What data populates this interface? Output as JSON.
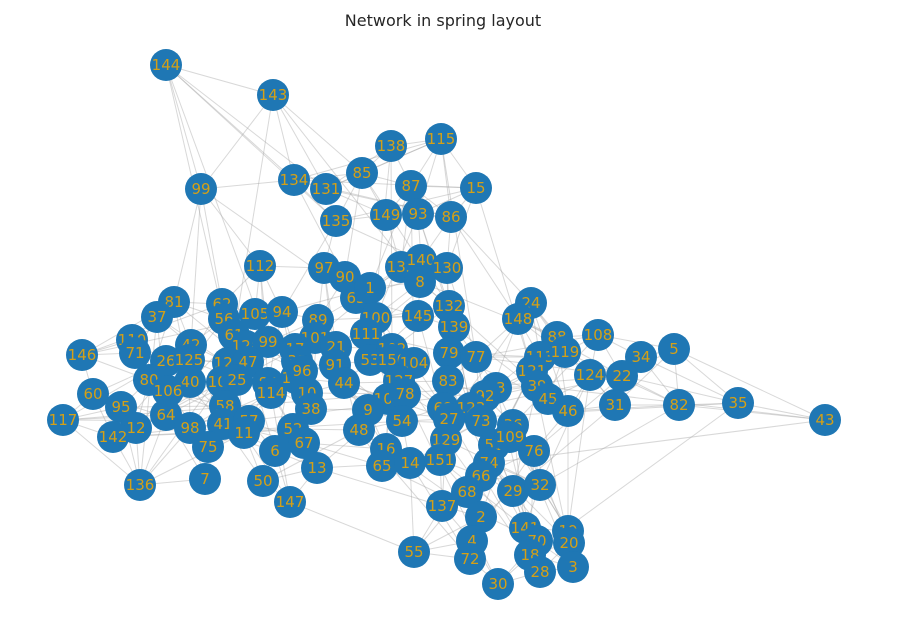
{
  "title": "Network in spring layout",
  "colors": {
    "node": "#1f77b4",
    "label": "#d4a017",
    "edge": "#a8a8a8"
  },
  "nodes": [
    {
      "id": "144"
    },
    {
      "id": "143"
    },
    {
      "id": "138"
    },
    {
      "id": "115"
    },
    {
      "id": "85"
    },
    {
      "id": "87"
    },
    {
      "id": "15"
    },
    {
      "id": "99"
    },
    {
      "id": "134"
    },
    {
      "id": "131"
    },
    {
      "id": "149"
    },
    {
      "id": "93"
    },
    {
      "id": "86"
    },
    {
      "id": "135"
    },
    {
      "id": "97"
    },
    {
      "id": "90"
    },
    {
      "id": "112"
    },
    {
      "id": "133"
    },
    {
      "id": "140"
    },
    {
      "id": "130"
    },
    {
      "id": "8"
    },
    {
      "id": "63"
    },
    {
      "id": "1"
    },
    {
      "id": "24"
    },
    {
      "id": "132"
    },
    {
      "id": "81"
    },
    {
      "id": "62"
    },
    {
      "id": "56"
    },
    {
      "id": "105"
    },
    {
      "id": "94"
    },
    {
      "id": "89"
    },
    {
      "id": "100"
    },
    {
      "id": "145"
    },
    {
      "id": "148"
    },
    {
      "id": "139"
    },
    {
      "id": "37"
    },
    {
      "id": "88"
    },
    {
      "id": "108"
    },
    {
      "id": "110"
    },
    {
      "id": "61"
    },
    {
      "id": "128"
    },
    {
      "id": "99"
    },
    {
      "id": "101"
    },
    {
      "id": "111"
    },
    {
      "id": "42"
    },
    {
      "id": "71"
    },
    {
      "id": "17"
    },
    {
      "id": "21"
    },
    {
      "id": "146"
    },
    {
      "id": "26"
    },
    {
      "id": "125"
    },
    {
      "id": "120"
    },
    {
      "id": "47"
    },
    {
      "id": "33"
    },
    {
      "id": "91"
    },
    {
      "id": "53"
    },
    {
      "id": "102"
    },
    {
      "id": "150"
    },
    {
      "id": "104"
    },
    {
      "id": "79"
    },
    {
      "id": "77"
    },
    {
      "id": "113"
    },
    {
      "id": "119"
    },
    {
      "id": "34"
    },
    {
      "id": "5"
    },
    {
      "id": "80"
    },
    {
      "id": "40"
    },
    {
      "id": "103"
    },
    {
      "id": "25"
    },
    {
      "id": "84"
    },
    {
      "id": "126"
    },
    {
      "id": "96"
    },
    {
      "id": "44"
    },
    {
      "id": "127"
    },
    {
      "id": "83"
    },
    {
      "id": "121"
    },
    {
      "id": "124"
    },
    {
      "id": "22"
    },
    {
      "id": "60"
    },
    {
      "id": "106"
    },
    {
      "id": "114"
    },
    {
      "id": "10"
    },
    {
      "id": "107"
    },
    {
      "id": "78"
    },
    {
      "id": "23"
    },
    {
      "id": "92"
    },
    {
      "id": "39"
    },
    {
      "id": "45"
    },
    {
      "id": "95"
    },
    {
      "id": "58"
    },
    {
      "id": "38"
    },
    {
      "id": "9"
    },
    {
      "id": "54"
    },
    {
      "id": "69"
    },
    {
      "id": "123"
    },
    {
      "id": "31"
    },
    {
      "id": "82"
    },
    {
      "id": "35"
    },
    {
      "id": "117"
    },
    {
      "id": "64"
    },
    {
      "id": "12"
    },
    {
      "id": "41"
    },
    {
      "id": "57"
    },
    {
      "id": "52"
    },
    {
      "id": "48"
    },
    {
      "id": "27"
    },
    {
      "id": "73"
    },
    {
      "id": "36"
    },
    {
      "id": "46"
    },
    {
      "id": "43"
    },
    {
      "id": "142"
    },
    {
      "id": "98"
    },
    {
      "id": "11"
    },
    {
      "id": "67"
    },
    {
      "id": "16"
    },
    {
      "id": "129"
    },
    {
      "id": "51"
    },
    {
      "id": "109"
    },
    {
      "id": "76"
    },
    {
      "id": "75"
    },
    {
      "id": "6"
    },
    {
      "id": "65"
    },
    {
      "id": "14"
    },
    {
      "id": "151"
    },
    {
      "id": "74"
    },
    {
      "id": "13"
    },
    {
      "id": "7"
    },
    {
      "id": "136"
    },
    {
      "id": "50"
    },
    {
      "id": "66"
    },
    {
      "id": "147"
    },
    {
      "id": "68"
    },
    {
      "id": "29"
    },
    {
      "id": "32"
    },
    {
      "id": "137"
    },
    {
      "id": "2"
    },
    {
      "id": "141"
    },
    {
      "id": "19"
    },
    {
      "id": "4"
    },
    {
      "id": "70"
    },
    {
      "id": "20"
    },
    {
      "id": "55"
    },
    {
      "id": "72"
    },
    {
      "id": "18"
    },
    {
      "id": "3"
    },
    {
      "id": "28"
    },
    {
      "id": "30"
    }
  ]
}
